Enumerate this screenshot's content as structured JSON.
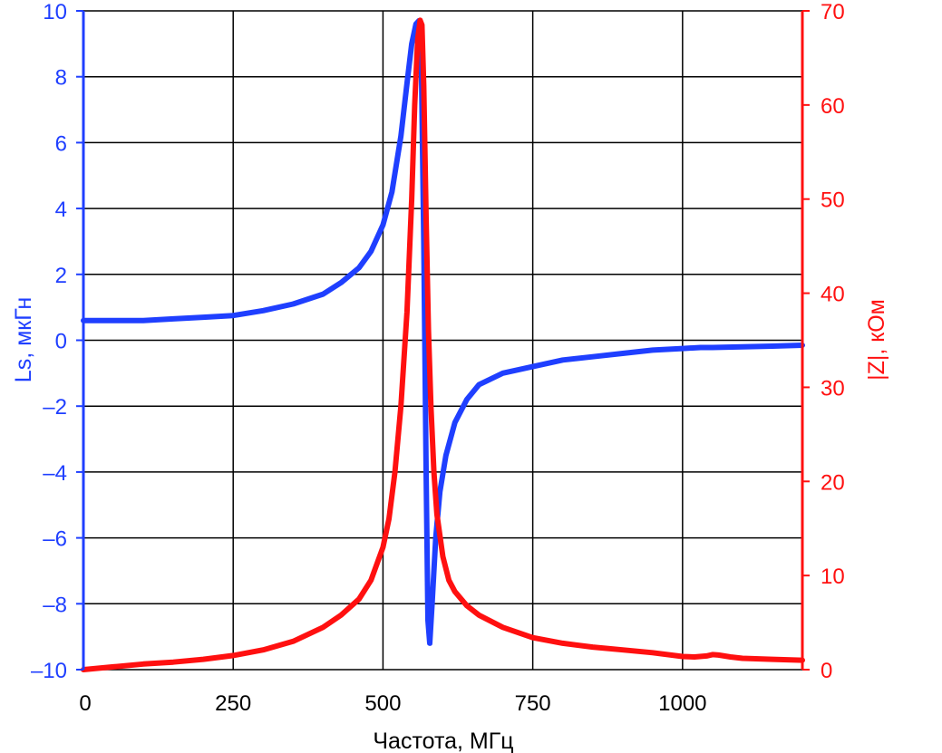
{
  "chart_data": {
    "type": "line",
    "xlabel": "Частота, МГц",
    "ylabel_left": "Ls, мкГн",
    "ylabel_right": "|Z|, кОм",
    "xlim": [
      0,
      1200
    ],
    "ylim_left": [
      -10,
      10
    ],
    "ylim_right": [
      0,
      70
    ],
    "grid": true,
    "x_ticks": [
      0,
      250,
      500,
      750,
      1000
    ],
    "x_tick_labels": [
      "0",
      "250",
      "500",
      "750",
      "1000"
    ],
    "y_left_ticks": [
      -10,
      -8,
      -6,
      -4,
      -2,
      0,
      2,
      4,
      6,
      8,
      10
    ],
    "y_left_tick_labels": [
      "–10",
      "–8",
      "–6",
      "–4",
      "–2",
      "0",
      "2",
      "4",
      "6",
      "8",
      "10"
    ],
    "y_right_ticks": [
      0,
      10,
      20,
      30,
      40,
      50,
      60,
      70
    ],
    "y_right_tick_labels": [
      "0",
      "10",
      "20",
      "30",
      "40",
      "50",
      "60",
      "70"
    ],
    "colors": {
      "left": "#1f3fff",
      "right": "#ff1010",
      "grid": "#000000"
    },
    "series": [
      {
        "axis": "left",
        "color": "#1f3fff",
        "x": [
          0,
          50,
          100,
          150,
          200,
          250,
          300,
          350,
          400,
          430,
          460,
          480,
          500,
          515,
          530,
          540,
          548,
          555,
          560,
          564,
          568,
          572,
          575,
          578,
          582,
          588,
          595,
          605,
          620,
          640,
          660,
          700,
          750,
          800,
          850,
          900,
          950,
          1000,
          1030,
          1050,
          1100,
          1150,
          1200
        ],
        "values": [
          0.6,
          0.6,
          0.6,
          0.65,
          0.7,
          0.75,
          0.9,
          1.1,
          1.4,
          1.75,
          2.2,
          2.7,
          3.5,
          4.5,
          6.2,
          7.8,
          9.0,
          9.6,
          9.7,
          8.5,
          3.0,
          -4.0,
          -8.5,
          -9.2,
          -8.0,
          -6.0,
          -4.6,
          -3.5,
          -2.5,
          -1.8,
          -1.35,
          -1.0,
          -0.8,
          -0.6,
          -0.5,
          -0.4,
          -0.3,
          -0.25,
          -0.22,
          -0.22,
          -0.2,
          -0.18,
          -0.15
        ]
      },
      {
        "axis": "right",
        "color": "#ff1010",
        "x": [
          0,
          50,
          100,
          150,
          200,
          250,
          300,
          350,
          400,
          430,
          460,
          480,
          500,
          510,
          520,
          530,
          540,
          548,
          553,
          558,
          562,
          565,
          568,
          572,
          576,
          580,
          585,
          590,
          600,
          610,
          620,
          640,
          660,
          700,
          750,
          800,
          850,
          900,
          950,
          1000,
          1020,
          1040,
          1050,
          1060,
          1080,
          1100,
          1150,
          1200
        ],
        "values": [
          0,
          0.3,
          0.6,
          0.8,
          1.1,
          1.5,
          2.1,
          3.0,
          4.5,
          5.8,
          7.5,
          9.5,
          13,
          16,
          21,
          28,
          38,
          50,
          60,
          67,
          69,
          68.5,
          62,
          48,
          36,
          28,
          21,
          16.5,
          12,
          9.5,
          8.3,
          6.8,
          5.8,
          4.5,
          3.4,
          2.8,
          2.4,
          2.1,
          1.8,
          1.4,
          1.35,
          1.45,
          1.6,
          1.55,
          1.35,
          1.2,
          1.1,
          1.0
        ]
      }
    ]
  }
}
